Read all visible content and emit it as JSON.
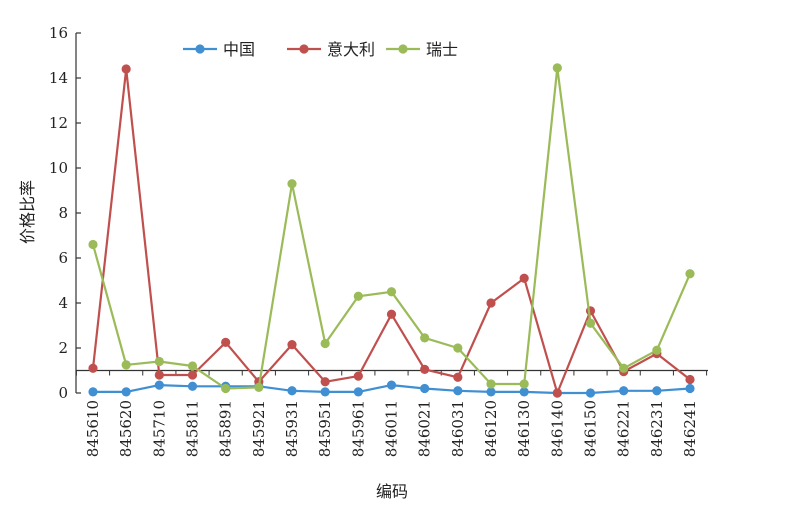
{
  "chart_data": {
    "type": "line",
    "title": "",
    "xlabel": "编码",
    "ylabel": "价格比率",
    "ylim": [
      0,
      16
    ],
    "yticks": [
      0,
      2,
      4,
      6,
      8,
      10,
      12,
      14,
      16
    ],
    "reference_line": 1,
    "grid": false,
    "legend_position": "top",
    "categories": [
      "845610",
      "845620",
      "845710",
      "845811",
      "845891",
      "845921",
      "845931",
      "845951",
      "845961",
      "846011",
      "846021",
      "846031",
      "846120",
      "846130",
      "846140",
      "846150",
      "846221",
      "846231",
      "846241"
    ],
    "series": [
      {
        "name": "中国",
        "color": "#3f8fd2",
        "values": [
          0.05,
          0.05,
          0.35,
          0.3,
          0.3,
          0.3,
          0.1,
          0.05,
          0.05,
          0.35,
          0.2,
          0.1,
          0.05,
          0.05,
          0.0,
          0.0,
          0.1,
          0.1,
          0.2
        ]
      },
      {
        "name": "意大利",
        "color": "#c0504d",
        "values": [
          1.1,
          14.4,
          0.8,
          0.8,
          2.25,
          0.5,
          2.15,
          0.5,
          0.75,
          3.5,
          1.05,
          0.7,
          4.0,
          5.1,
          0.0,
          3.65,
          0.95,
          1.75,
          0.6
        ]
      },
      {
        "name": "瑞士",
        "color": "#9bbb59",
        "values": [
          6.6,
          1.25,
          1.4,
          1.2,
          0.2,
          0.25,
          9.3,
          2.2,
          4.3,
          4.5,
          2.45,
          2.0,
          0.4,
          0.4,
          14.45,
          3.1,
          1.1,
          1.9,
          5.3
        ]
      }
    ]
  }
}
